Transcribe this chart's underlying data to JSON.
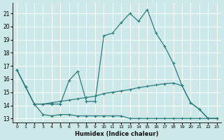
{
  "xlabel": "Humidex (Indice chaleur)",
  "bg_color": "#cce8e8",
  "grid_color": "#ffffff",
  "line_color": "#2d7d7d",
  "xlim": [
    -0.5,
    23.5
  ],
  "ylim": [
    12.7,
    21.8
  ],
  "yticks": [
    13,
    14,
    15,
    16,
    17,
    18,
    19,
    20,
    21
  ],
  "xticks": [
    0,
    1,
    2,
    3,
    4,
    5,
    6,
    7,
    8,
    9,
    10,
    11,
    12,
    13,
    14,
    15,
    16,
    17,
    18,
    19,
    20,
    21,
    22,
    23
  ],
  "line1_x": [
    0,
    1,
    2,
    3,
    4,
    5,
    6,
    7,
    8,
    9,
    10,
    11,
    12,
    13,
    14,
    15,
    16,
    17,
    18,
    19,
    20,
    21,
    22,
    23
  ],
  "line1_y": [
    16.7,
    15.4,
    14.1,
    13.3,
    13.2,
    13.3,
    13.3,
    13.2,
    13.2,
    13.2,
    13.2,
    13.2,
    13.2,
    13.0,
    13.0,
    13.0,
    13.0,
    13.0,
    13.0,
    13.0,
    13.0,
    13.0,
    13.0,
    13.0
  ],
  "line2_x": [
    0,
    1,
    2,
    3,
    4,
    5,
    6,
    7,
    8,
    9,
    10,
    11,
    12,
    13,
    14,
    15,
    16,
    17,
    18,
    19,
    20,
    21,
    22,
    23
  ],
  "line2_y": [
    16.7,
    15.4,
    14.1,
    14.1,
    14.1,
    14.1,
    15.9,
    16.6,
    14.3,
    14.3,
    19.3,
    19.5,
    20.3,
    21.0,
    20.4,
    21.3,
    19.5,
    18.5,
    17.2,
    15.5,
    14.2,
    13.7,
    13.0,
    13.0
  ],
  "line3_x": [
    0,
    1,
    2,
    3,
    4,
    5,
    6,
    7,
    8,
    9,
    10,
    11,
    12,
    13,
    14,
    15,
    16,
    17,
    18,
    19,
    20,
    21,
    22,
    23
  ],
  "line3_y": [
    16.7,
    15.4,
    14.1,
    14.1,
    14.2,
    14.3,
    14.4,
    14.5,
    14.6,
    14.7,
    14.9,
    15.0,
    15.1,
    15.2,
    15.35,
    15.45,
    15.55,
    15.65,
    15.7,
    15.5,
    14.2,
    13.7,
    13.0,
    13.0
  ]
}
